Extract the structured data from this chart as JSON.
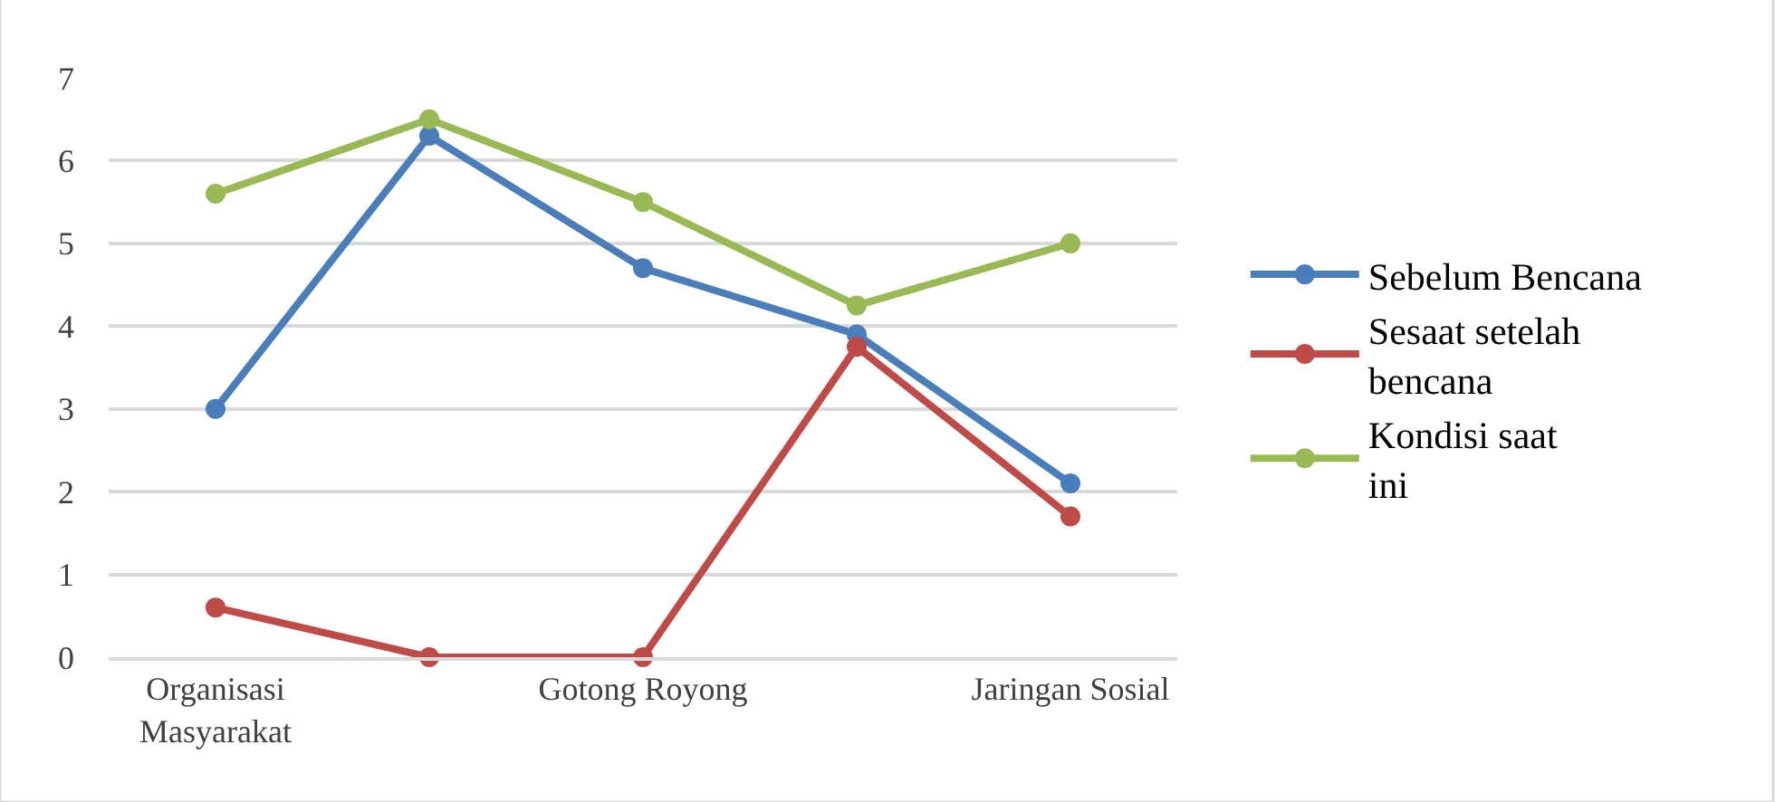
{
  "chart_data": {
    "type": "line",
    "categories": [
      "Organisasi Masyarakat",
      null,
      "Gotong Royong",
      null,
      "Jaringan Sosial"
    ],
    "series": [
      {
        "name": "Sebelum Bencana",
        "color": "#4a7ebb",
        "values": [
          3.0,
          6.3,
          4.7,
          3.9,
          2.1
        ]
      },
      {
        "name": "Sesaat setelah bencana",
        "color": "#be4b48",
        "values": [
          0.6,
          0,
          0,
          3.75,
          1.7
        ]
      },
      {
        "name": "Kondisi saat ini",
        "color": "#98b954",
        "values": [
          5.6,
          6.5,
          5.5,
          4.25,
          5.0
        ]
      }
    ],
    "ylim": [
      0,
      7
    ],
    "yticks": [
      0,
      1,
      2,
      3,
      4,
      5,
      6,
      7
    ],
    "grid": "y",
    "legend": "right",
    "marker": "circle",
    "line_style": "solid"
  }
}
